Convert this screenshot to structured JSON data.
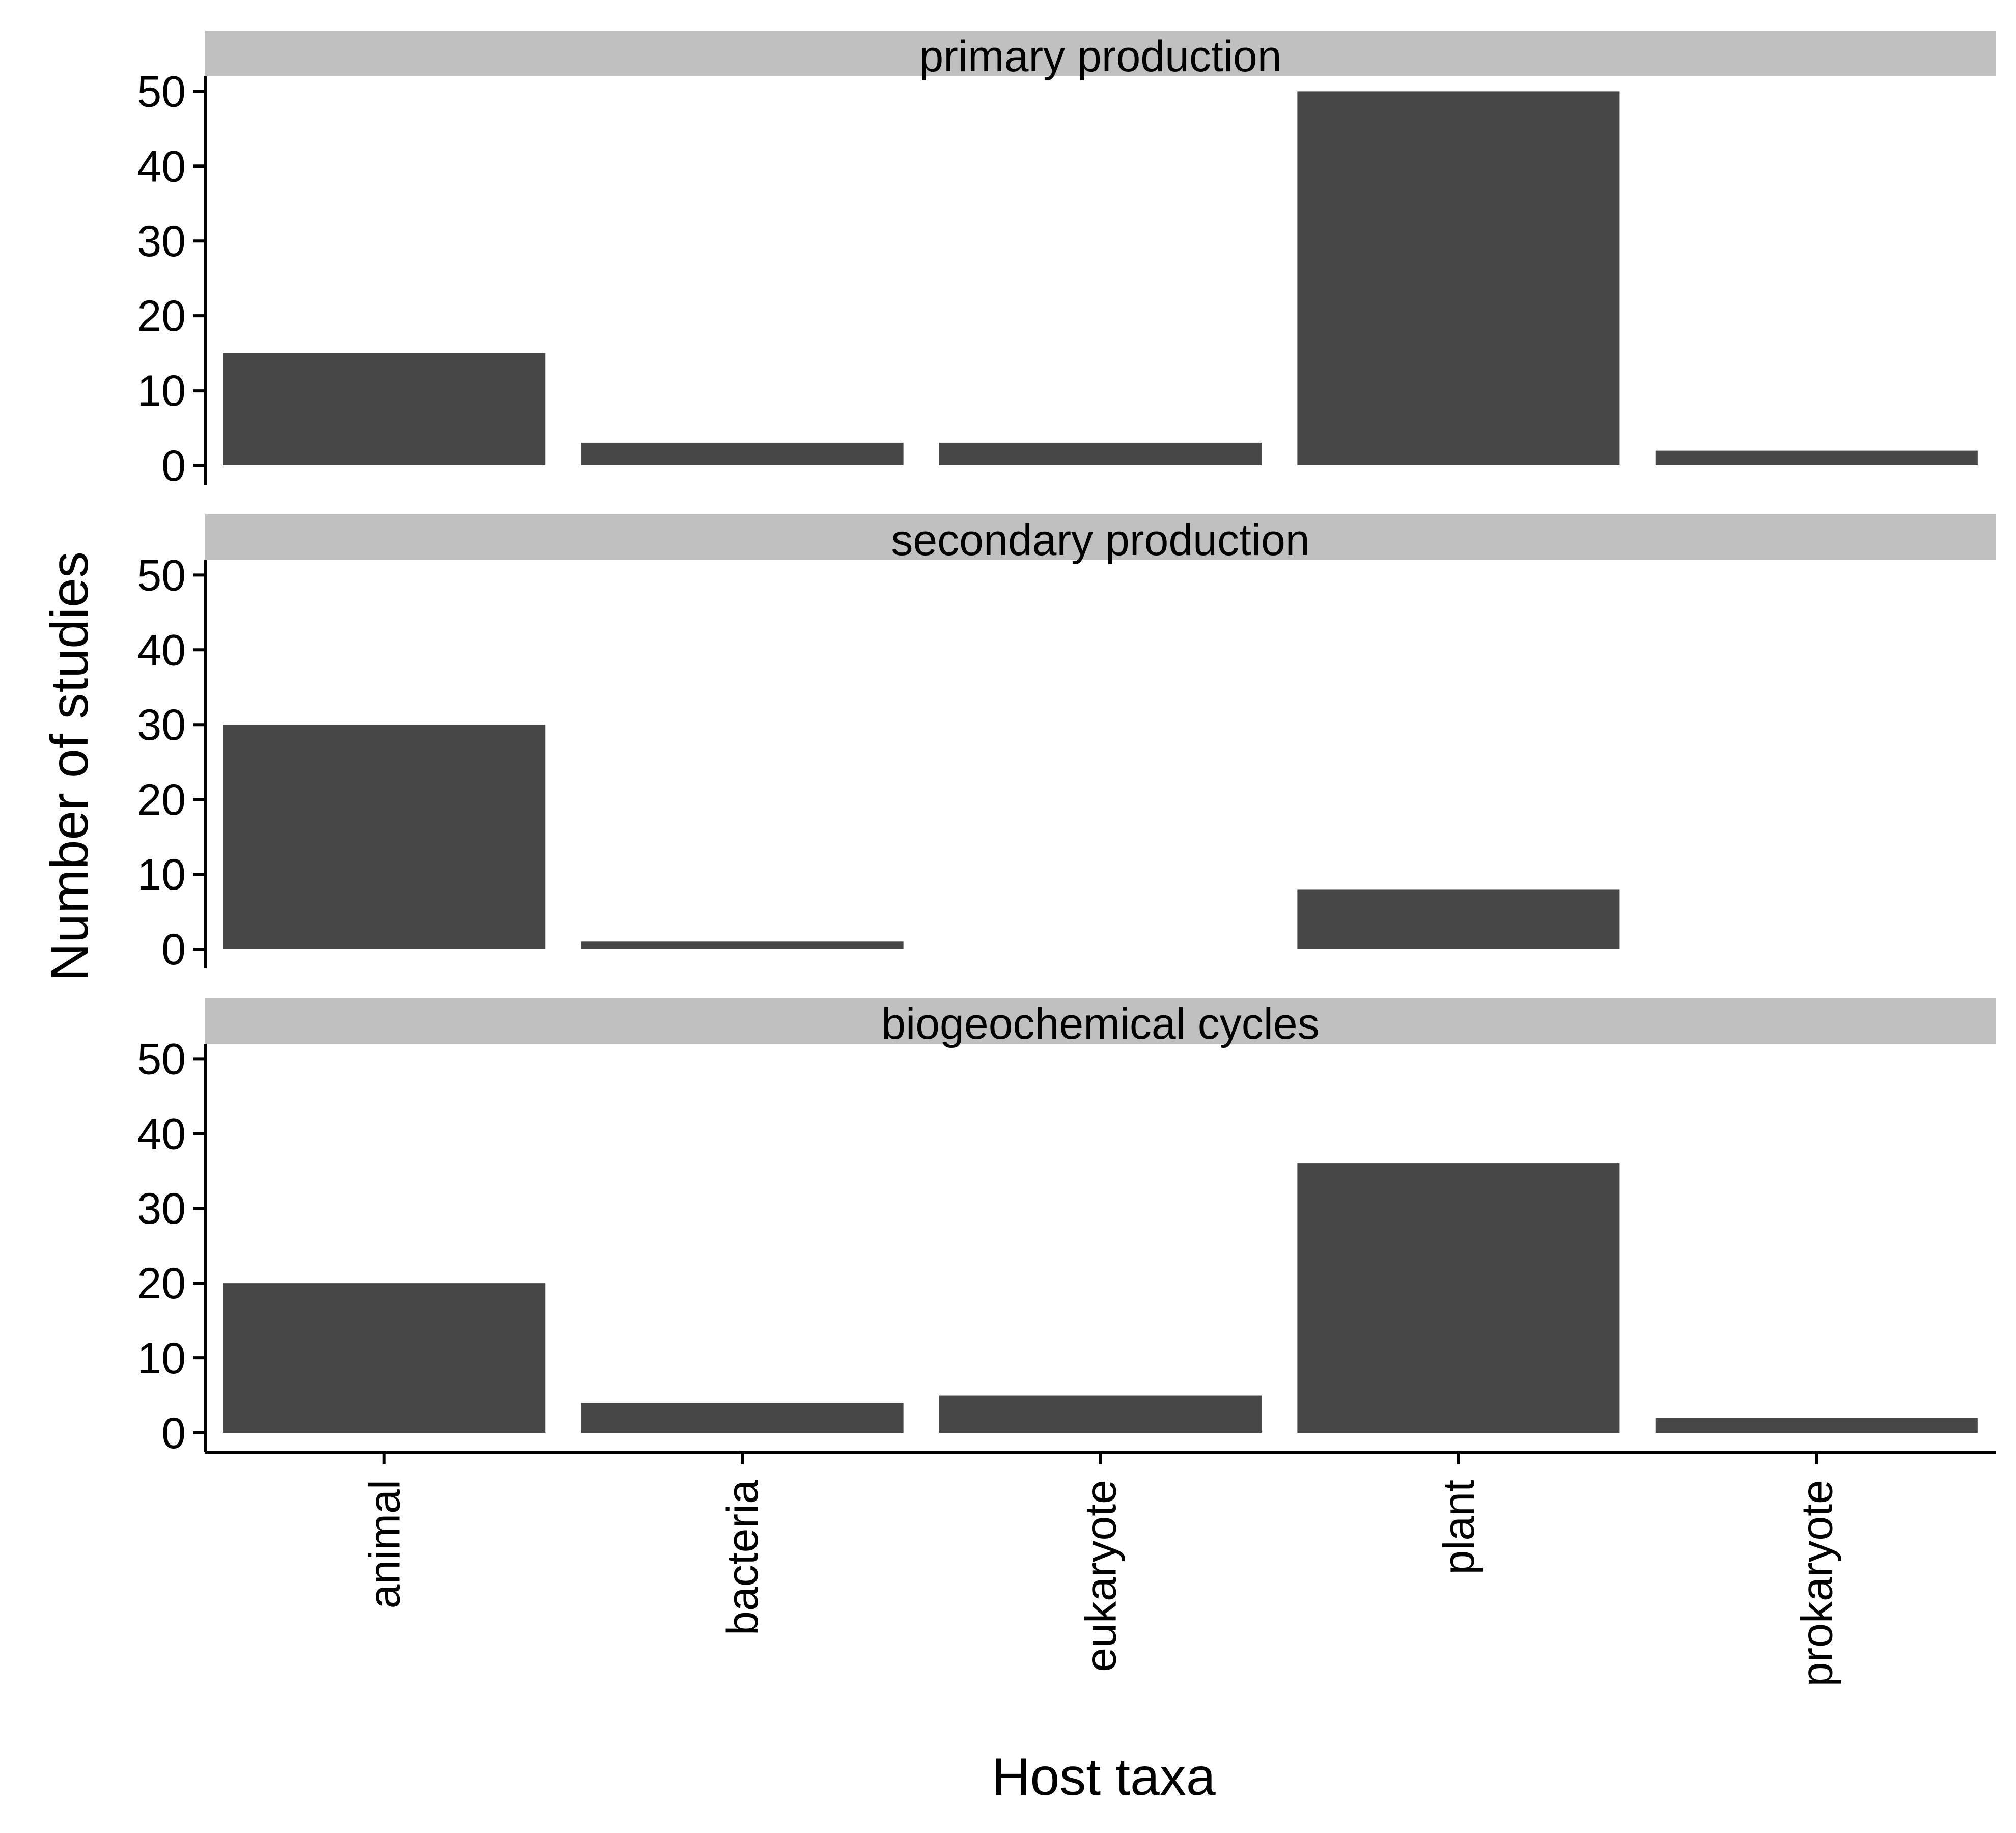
{
  "chart_data": {
    "type": "bar",
    "layout": "facets-stacked-vertically",
    "xlabel": "Host taxa",
    "ylabel": "Number of studies",
    "categories": [
      "animal",
      "bacteria",
      "eukaryote",
      "plant",
      "prokaryote"
    ],
    "ylim": [
      0,
      52
    ],
    "yticks": [
      0,
      10,
      20,
      30,
      40,
      50
    ],
    "grid": false,
    "bar_color": "#474747",
    "strip_color": "#c0c0c0",
    "facets": [
      {
        "label": "primary production",
        "values": [
          15,
          3,
          3,
          50,
          2
        ]
      },
      {
        "label": "secondary production",
        "values": [
          30,
          1,
          0,
          8,
          0
        ]
      },
      {
        "label": "biogeochemical cycles",
        "values": [
          20,
          4,
          5,
          36,
          2
        ]
      }
    ]
  }
}
